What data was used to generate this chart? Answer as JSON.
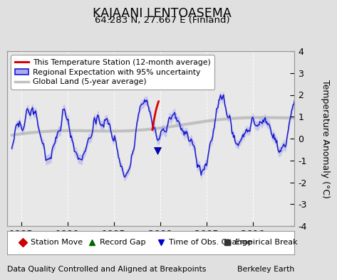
{
  "title": "KAJAANI LENTOASEMA",
  "subtitle": "64.283 N, 27.667 E (Finland)",
  "ylabel": "Temperature Anomaly (°C)",
  "xlabel_left": "Data Quality Controlled and Aligned at Breakpoints",
  "xlabel_right": "Berkeley Earth",
  "ylim": [
    -4,
    4
  ],
  "xlim": [
    1983.5,
    2014.5
  ],
  "xticks": [
    1985,
    1990,
    1995,
    2000,
    2005,
    2010
  ],
  "yticks": [
    -4,
    -3,
    -2,
    -1,
    0,
    1,
    2,
    3,
    4
  ],
  "bg_color": "#e0e0e0",
  "plot_bg_color": "#e8e8e8",
  "grid_color": "#cccccc",
  "legend_items": [
    {
      "label": "This Temperature Station (12-month average)",
      "color": "#ff0000"
    },
    {
      "label": "Regional Expectation with 95% uncertainty",
      "color": "#2222dd"
    },
    {
      "label": "Global Land (5-year average)",
      "color": "#aaaaaa"
    }
  ],
  "bottom_legend": [
    {
      "label": "Station Move",
      "marker": "D",
      "color": "#cc0000"
    },
    {
      "label": "Record Gap",
      "marker": "^",
      "color": "#006600"
    },
    {
      "label": "Time of Obs. Change",
      "marker": "v",
      "color": "#0000cc"
    },
    {
      "label": "Empirical Break",
      "marker": "s",
      "color": "#333333"
    }
  ]
}
